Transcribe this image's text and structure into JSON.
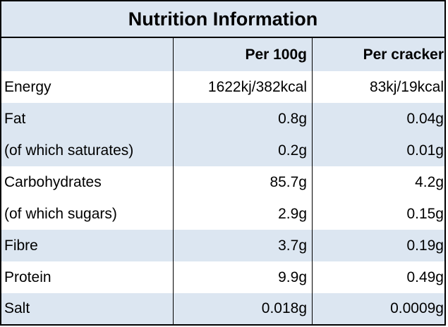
{
  "title": "Nutrition Information",
  "headers": {
    "nutrient": "",
    "per_100g": "Per 100g",
    "per_cracker": "Per cracker"
  },
  "rows": [
    {
      "name": "Energy",
      "per_100g": "1622kj/382kcal",
      "per_cracker": "83kj/19kcal"
    },
    {
      "name": "Fat",
      "per_100g": "0.8g",
      "per_cracker": "0.04g"
    },
    {
      "name": "(of which saturates)",
      "per_100g": "0.2g",
      "per_cracker": "0.01g"
    },
    {
      "name": "Carbohydrates",
      "per_100g": "85.7g",
      "per_cracker": "4.2g"
    },
    {
      "name": "(of which sugars)",
      "per_100g": "2.9g",
      "per_cracker": "0.15g"
    },
    {
      "name": "Fibre",
      "per_100g": "3.7g",
      "per_cracker": "0.19g"
    },
    {
      "name": "Protein",
      "per_100g": "9.9g",
      "per_cracker": "0.49g"
    },
    {
      "name": "Salt",
      "per_100g": "0.018g",
      "per_cracker": "0.0009g"
    }
  ],
  "colors": {
    "shade": "#dce6f1",
    "border": "#000000"
  }
}
